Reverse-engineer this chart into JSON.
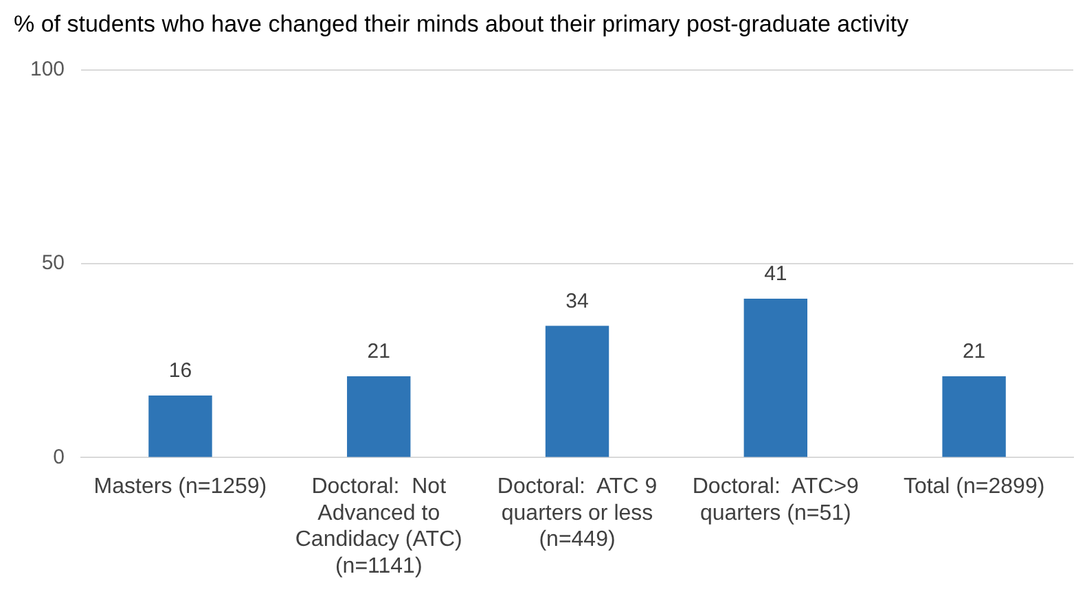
{
  "chart_data": {
    "type": "bar",
    "title": "% of students who have changed their minds about their primary post-graduate activity",
    "categories": [
      "Masters (n=1259)",
      "Doctoral:  Not Advanced to Candidacy (ATC) (n=1141)",
      "Doctoral:  ATC 9 quarters or less (n=449)",
      "Doctoral:  ATC>9 quarters (n=51)",
      "Total (n=2899)"
    ],
    "values": [
      16,
      21,
      34,
      41,
      21
    ],
    "color": "#2e75b6",
    "ylim": [
      0,
      100
    ],
    "yticks": [
      0,
      50,
      100
    ],
    "grid": "y",
    "data_labels": true
  }
}
